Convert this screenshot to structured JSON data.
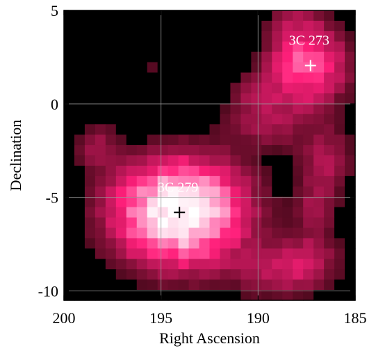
{
  "chart_data": {
    "type": "heatmap",
    "title": "",
    "xlabel": "Right Ascension",
    "ylabel": "Declination",
    "xlim": [
      200,
      185
    ],
    "ylim": [
      -10.5,
      5
    ],
    "x_ticks": [
      200,
      195,
      190,
      185
    ],
    "y_ticks": [
      5,
      0,
      -5,
      -10
    ],
    "x_tick_labels": [
      "200",
      "195",
      "190",
      "185"
    ],
    "y_tick_labels": [
      "5",
      "0",
      "-5",
      "-10"
    ],
    "grid": true,
    "colors": {
      "background": "#000000",
      "gridline": "#9a9a9a",
      "colormap": [
        "#000000",
        "#3a0614",
        "#7a0f33",
        "#c2185b",
        "#ff1f7a",
        "#ff6fae",
        "#ffd6e8",
        "#ffffff"
      ]
    },
    "sources": [
      {
        "name": "3C 279",
        "ra": 194.05,
        "dec": -5.8,
        "label_color": "#ffffff",
        "marker_color": "#000000"
      },
      {
        "name": "3C 273",
        "ra": 187.3,
        "dec": 2.05,
        "label_color": "#ffffff",
        "marker_color": "#ffffff"
      }
    ]
  }
}
